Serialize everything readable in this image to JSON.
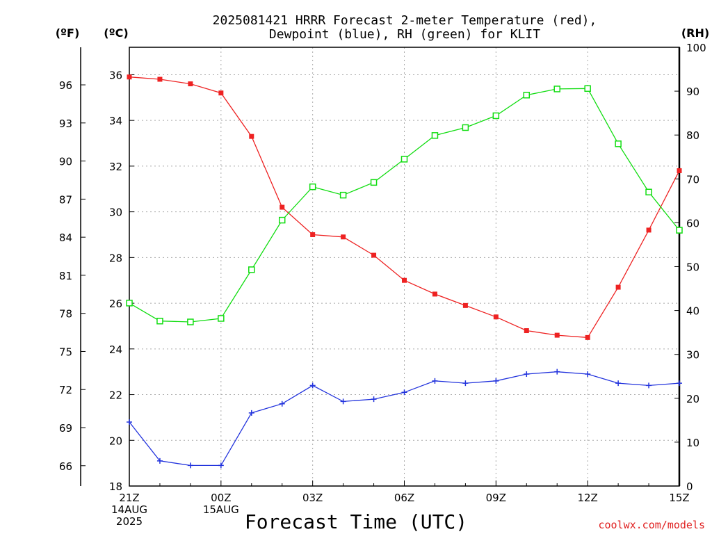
{
  "chart_data": {
    "type": "line",
    "title": [
      "2025081421 HRRR Forecast 2-meter Temperature (red),",
      "Dewpoint (blue), RH (green) for KLIT"
    ],
    "xlabel": "Forecast Time (UTC)",
    "watermark": "coolwx.com/models",
    "unit_labels": {
      "fahrenheit": "(ºF)",
      "celsius": "(ºC)",
      "rh": "(RH)"
    },
    "x": [
      0,
      1,
      2,
      3,
      4,
      5,
      6,
      7,
      8,
      9,
      10,
      11,
      12,
      13,
      14,
      15,
      16,
      17,
      18
    ],
    "xlim": [
      0,
      18
    ],
    "x_ticks": [
      {
        "x": 0,
        "lines": [
          "21Z",
          "14AUG",
          "2025"
        ]
      },
      {
        "x": 3,
        "lines": [
          "00Z",
          "15AUG"
        ]
      },
      {
        "x": 6,
        "lines": [
          "03Z"
        ]
      },
      {
        "x": 9,
        "lines": [
          "06Z"
        ]
      },
      {
        "x": 12,
        "lines": [
          "09Z"
        ]
      },
      {
        "x": 15,
        "lines": [
          "12Z"
        ]
      },
      {
        "x": 18,
        "lines": [
          "15Z"
        ]
      }
    ],
    "celsius_axis": {
      "range": [
        18,
        37.2
      ],
      "ticks": [
        18,
        20,
        22,
        24,
        26,
        28,
        30,
        32,
        34,
        36
      ]
    },
    "fahrenheit_axis": {
      "ticks": [
        66,
        69,
        72,
        75,
        78,
        81,
        84,
        87,
        90,
        93,
        96
      ]
    },
    "rh_axis": {
      "range": [
        0,
        100
      ],
      "ticks": [
        0,
        10,
        20,
        30,
        40,
        50,
        60,
        70,
        80,
        90,
        100
      ]
    },
    "grid": true,
    "series": [
      {
        "name": "Temperature",
        "axis": "celsius",
        "color": "#ee2222",
        "marker": "filled-square",
        "values": [
          35.9,
          35.8,
          35.6,
          35.2,
          33.3,
          30.2,
          29.0,
          28.9,
          28.1,
          27.0,
          26.4,
          25.9,
          25.4,
          24.8,
          24.6,
          24.5,
          26.7,
          29.2,
          31.8
        ]
      },
      {
        "name": "Dewpoint",
        "axis": "celsius",
        "color": "#2233dd",
        "marker": "plus",
        "values": [
          20.8,
          19.1,
          18.9,
          18.9,
          21.2,
          21.6,
          22.4,
          21.7,
          21.8,
          22.1,
          22.6,
          22.5,
          22.6,
          22.9,
          23.0,
          22.9,
          22.5,
          22.4,
          22.5
        ]
      },
      {
        "name": "RH",
        "axis": "rh",
        "color": "#11dd11",
        "marker": "open-square",
        "values": [
          41.7,
          37.6,
          37.4,
          38.2,
          49.3,
          60.6,
          68.2,
          66.3,
          69.2,
          74.5,
          79.9,
          81.7,
          84.4,
          89.1,
          90.5,
          90.6,
          78.0,
          67.0,
          58.3
        ]
      }
    ]
  }
}
